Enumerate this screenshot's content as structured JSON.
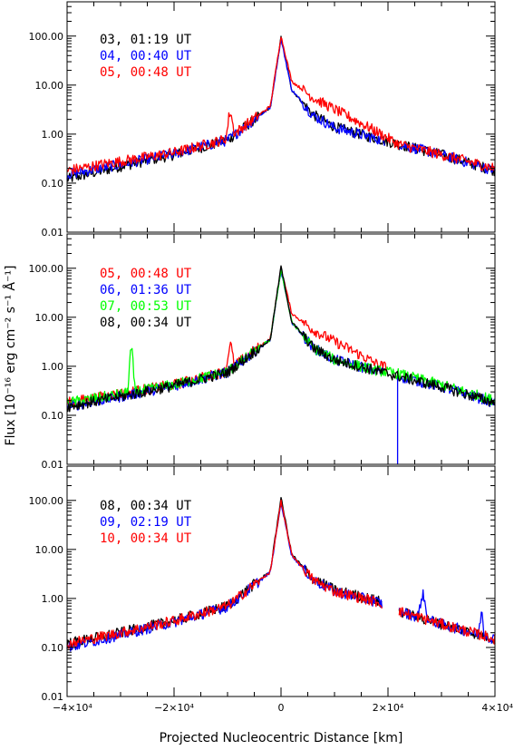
{
  "chart_data": {
    "type": "line",
    "xlabel": "Projected Nucleocentric Distance [km]",
    "ylabel": "Flux [10⁻¹⁶ erg cm⁻² s⁻¹ Å⁻¹]",
    "xlim": [
      -40000,
      40000
    ],
    "ylim": [
      0.01,
      500
    ],
    "y_scale": "log",
    "x_ticks": [
      -40000,
      -20000,
      0,
      20000,
      40000
    ],
    "x_tick_labels": [
      "−4×10⁴",
      "−2×10⁴",
      "0",
      "2×10⁴",
      "4×10⁴"
    ],
    "y_ticks": [
      0.01,
      0.1,
      1,
      10,
      100
    ],
    "y_tick_labels": [
      "0.01",
      "0.10",
      "1.00",
      "10.00",
      "100.00"
    ],
    "grid": false,
    "panels": [
      {
        "series": [
          {
            "name": "03, 01:19 UT",
            "color": "#000000",
            "peak": 95,
            "left_x": [
              -40000,
              -30000,
              -20000,
              -10000,
              -2000,
              0
            ],
            "left_y": [
              0.12,
              0.22,
              0.38,
              0.75,
              3.5,
              95
            ],
            "right_x": [
              0,
              2000,
              6000,
              10000,
              18000,
              22000,
              30000,
              40000
            ],
            "right_y": [
              95,
              8,
              2.5,
              1.4,
              0.8,
              0.62,
              0.38,
              0.18
            ],
            "features": [],
            "gap": null
          },
          {
            "name": "04, 00:40 UT",
            "color": "#0000ff",
            "peak": 88,
            "left_x": [
              -40000,
              -30000,
              -20000,
              -10000,
              -2000,
              0
            ],
            "left_y": [
              0.15,
              0.24,
              0.4,
              0.75,
              3.5,
              88
            ],
            "right_x": [
              0,
              2000,
              6000,
              10000,
              18000,
              22000,
              30000,
              40000
            ],
            "right_y": [
              88,
              8,
              2.4,
              1.35,
              0.8,
              0.62,
              0.38,
              0.18
            ],
            "features": [],
            "gap": [
              19500,
              22000
            ]
          },
          {
            "name": "05, 00:48 UT",
            "color": "#ff0000",
            "peak": 100,
            "left_x": [
              -40000,
              -30000,
              -20000,
              -10000,
              -2000,
              0
            ],
            "left_y": [
              0.18,
              0.28,
              0.42,
              0.8,
              3.7,
              100
            ],
            "right_x": [
              0,
              2000,
              6000,
              10000,
              14000,
              18000,
              22000,
              30000,
              40000
            ],
            "right_y": [
              100,
              12,
              5.5,
              3.2,
              1.9,
              1.1,
              0.62,
              0.38,
              0.2
            ],
            "features": [
              {
                "x": -9500,
                "height": 1.9,
                "width": 450
              }
            ],
            "gap": null
          }
        ]
      },
      {
        "series": [
          {
            "name": "05, 00:48 UT",
            "color": "#ff0000",
            "peak": 100,
            "left_x": [
              -40000,
              -30000,
              -20000,
              -10000,
              -2000,
              0
            ],
            "left_y": [
              0.18,
              0.28,
              0.42,
              0.8,
              3.7,
              100
            ],
            "right_x": [
              0,
              2000,
              6000,
              10000,
              14000,
              18000,
              19800
            ],
            "right_y": [
              100,
              12,
              5.5,
              3.2,
              1.9,
              1.1,
              0.95
            ],
            "features": [
              {
                "x": -9500,
                "height": 1.9,
                "width": 450
              }
            ],
            "gap": null
          },
          {
            "name": "06, 01:36 UT",
            "color": "#0000ff",
            "peak": 90,
            "left_x": [
              -40000,
              -30000,
              -20000,
              -10000,
              -2000,
              0
            ],
            "left_y": [
              0.15,
              0.24,
              0.4,
              0.75,
              3.5,
              90
            ],
            "right_x": [
              0,
              2000,
              6000,
              10000,
              18000,
              22000,
              30000,
              40000
            ],
            "right_y": [
              90,
              8,
              2.4,
              1.35,
              0.8,
              0.62,
              0.38,
              0.18
            ],
            "features": [],
            "gap": [
              19500,
              21800
            ],
            "drop": {
              "x": 21800,
              "to": 0.01
            }
          },
          {
            "name": "07, 00:53 UT",
            "color": "#00ff00",
            "peak": 95,
            "left_x": [
              -40000,
              -30000,
              -20000,
              -10000,
              -2000,
              0
            ],
            "left_y": [
              0.18,
              0.27,
              0.42,
              0.78,
              3.5,
              95
            ],
            "right_x": [
              0,
              2000,
              6000,
              10000,
              18000,
              22000,
              30000,
              40000
            ],
            "right_y": [
              95,
              8,
              2.4,
              1.35,
              0.82,
              0.7,
              0.42,
              0.2
            ],
            "features": [
              {
                "x": -28000,
                "height": 1.9,
                "width": 350
              }
            ],
            "gap": null
          },
          {
            "name": "08, 00:34 UT",
            "color": "#000000",
            "peak": 110,
            "left_x": [
              -40000,
              -30000,
              -20000,
              -10000,
              -2000,
              0
            ],
            "left_y": [
              0.15,
              0.24,
              0.4,
              0.75,
              3.5,
              110
            ],
            "right_x": [
              0,
              2000,
              6000,
              10000,
              18000,
              22000,
              30000,
              40000
            ],
            "right_y": [
              110,
              8,
              2.4,
              1.35,
              0.8,
              0.62,
              0.38,
              0.18
            ],
            "features": [],
            "gap": null
          }
        ]
      },
      {
        "series": [
          {
            "name": "08, 00:34 UT",
            "color": "#000000",
            "peak": 115,
            "left_x": [
              -40000,
              -30000,
              -20000,
              -10000,
              -2000,
              0
            ],
            "left_y": [
              0.12,
              0.2,
              0.35,
              0.7,
              3.6,
              115
            ],
            "right_x": [
              0,
              2000,
              6000,
              10000,
              18000,
              22000,
              30000,
              40000
            ],
            "right_y": [
              115,
              8,
              2.5,
              1.5,
              0.9,
              0.55,
              0.3,
              0.15
            ],
            "features": [],
            "gap": [
              19000,
              22000
            ]
          },
          {
            "name": "09, 02:19 UT",
            "color": "#0000ff",
            "peak": 90,
            "left_x": [
              -40000,
              -30000,
              -20000,
              -10000,
              -2000,
              0
            ],
            "left_y": [
              0.1,
              0.18,
              0.33,
              0.68,
              3.4,
              90
            ],
            "right_x": [
              0,
              2000,
              6000,
              10000,
              18000,
              22000,
              30000,
              40000
            ],
            "right_y": [
              90,
              7.5,
              2.4,
              1.4,
              0.85,
              0.55,
              0.3,
              0.15
            ],
            "features": [
              {
                "x": 26500,
                "height": 0.8,
                "width": 500
              },
              {
                "x": 37500,
                "height": 0.35,
                "width": 300
              }
            ],
            "gap": [
              19000,
              22000
            ]
          },
          {
            "name": "10, 00:34 UT",
            "color": "#ff0000",
            "peak": 95,
            "left_x": [
              -40000,
              -30000,
              -20000,
              -10000,
              -2000,
              0
            ],
            "left_y": [
              0.12,
              0.2,
              0.35,
              0.7,
              3.5,
              95
            ],
            "right_x": [
              0,
              2000,
              6000,
              10000,
              18000,
              22000,
              30000,
              40000
            ],
            "right_y": [
              95,
              7.8,
              2.4,
              1.4,
              0.85,
              0.55,
              0.3,
              0.15
            ],
            "features": [],
            "gap": [
              19000,
              22000
            ]
          }
        ]
      }
    ]
  }
}
